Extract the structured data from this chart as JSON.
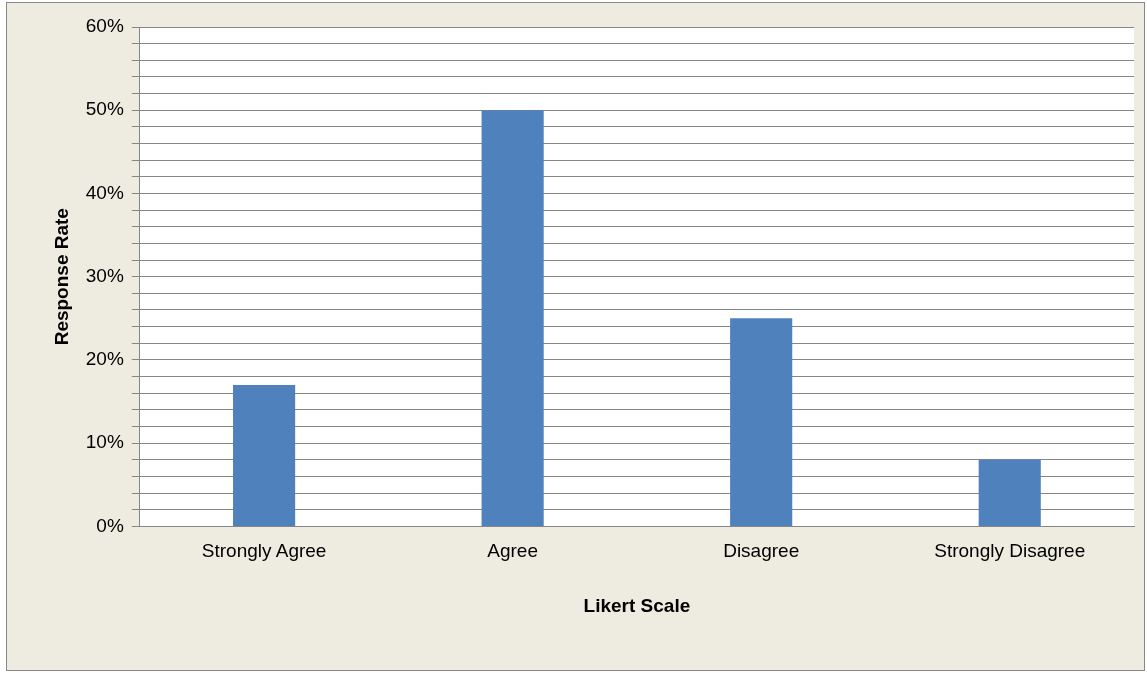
{
  "chart_data": {
    "type": "bar",
    "xlabel": "Likert Scale",
    "ylabel": "Response Rate",
    "categories": [
      "Strongly Agree",
      "Agree",
      "Disagree",
      "Strongly Disagree"
    ],
    "values": [
      17,
      50,
      25,
      8
    ],
    "color": "#4f81bd",
    "ylim": [
      0,
      60
    ],
    "yticks": [
      {
        "value": 0,
        "label": "0%"
      },
      {
        "value": 2,
        "label": null
      },
      {
        "value": 4,
        "label": null
      },
      {
        "value": 6,
        "label": null
      },
      {
        "value": 8,
        "label": null
      },
      {
        "value": 10,
        "label": "10%"
      },
      {
        "value": 12,
        "label": null
      },
      {
        "value": 14,
        "label": null
      },
      {
        "value": 16,
        "label": null
      },
      {
        "value": 18,
        "label": null
      },
      {
        "value": 20,
        "label": "20%"
      },
      {
        "value": 22,
        "label": null
      },
      {
        "value": 24,
        "label": null
      },
      {
        "value": 26,
        "label": null
      },
      {
        "value": 28,
        "label": null
      },
      {
        "value": 30,
        "label": "30%"
      },
      {
        "value": 32,
        "label": null
      },
      {
        "value": 34,
        "label": null
      },
      {
        "value": 36,
        "label": null
      },
      {
        "value": 38,
        "label": null
      },
      {
        "value": 40,
        "label": "40%"
      },
      {
        "value": 42,
        "label": null
      },
      {
        "value": 44,
        "label": null
      },
      {
        "value": 46,
        "label": null
      },
      {
        "value": 48,
        "label": null
      },
      {
        "value": 50,
        "label": "50%"
      },
      {
        "value": 52,
        "label": null
      },
      {
        "value": 54,
        "label": null
      },
      {
        "value": 56,
        "label": null
      },
      {
        "value": 58,
        "label": null
      },
      {
        "value": 60,
        "label": "60%"
      }
    ],
    "grid": "y"
  }
}
